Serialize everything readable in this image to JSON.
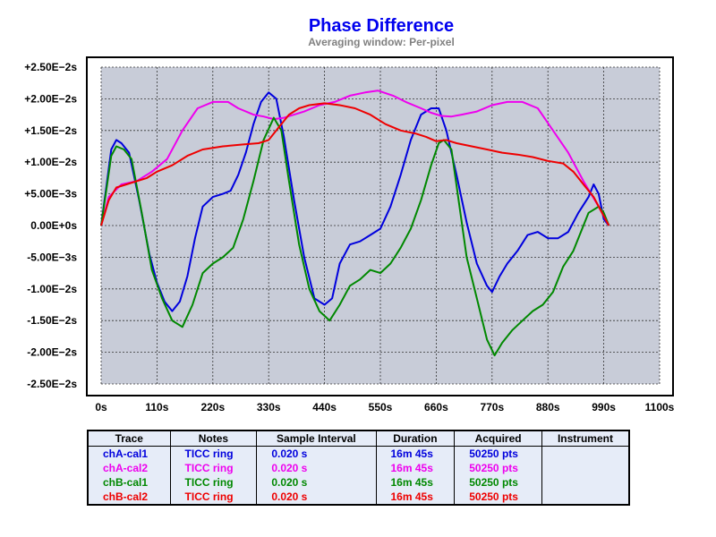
{
  "chart_data": {
    "type": "line",
    "title": "Phase Difference",
    "subtitle": "Averaging window: Per-pixel",
    "xlim": [
      0,
      1100
    ],
    "ylim": [
      -0.025,
      0.025
    ],
    "grid": true,
    "x_ticks": [
      0,
      110,
      220,
      330,
      440,
      550,
      660,
      770,
      880,
      990,
      1100
    ],
    "x_tick_labels": [
      "0s",
      "110s",
      "220s",
      "330s",
      "440s",
      "550s",
      "660s",
      "770s",
      "880s",
      "990s",
      "1100s"
    ],
    "y_ticks": [
      0.025,
      0.02,
      0.015,
      0.01,
      0.005,
      0,
      -0.005,
      -0.01,
      -0.015,
      -0.02,
      -0.025
    ],
    "y_tick_labels": [
      "+2.50E−2s",
      "+2.00E−2s",
      "+1.50E−2s",
      "+1.00E−2s",
      "+5.00E−3s",
      "0.00E+0s",
      "-5.00E−3s",
      "-1.00E−2s",
      "-1.50E−2s",
      "-2.00E−2s",
      "-2.50E−2s"
    ],
    "zero_label_color": "#0000ee",
    "plot_bg": "#c8ccd8",
    "series": [
      {
        "name": "chA-cal1",
        "color": "#0000dd",
        "points": [
          [
            0,
            0
          ],
          [
            10,
            0.006
          ],
          [
            20,
            0.012
          ],
          [
            30,
            0.0135
          ],
          [
            40,
            0.013
          ],
          [
            55,
            0.0115
          ],
          [
            75,
            0.004
          ],
          [
            95,
            -0.0045
          ],
          [
            110,
            -0.009
          ],
          [
            125,
            -0.012
          ],
          [
            140,
            -0.0135
          ],
          [
            155,
            -0.012
          ],
          [
            170,
            -0.008
          ],
          [
            185,
            -0.002
          ],
          [
            200,
            0.003
          ],
          [
            220,
            0.0045
          ],
          [
            240,
            0.005
          ],
          [
            255,
            0.0055
          ],
          [
            270,
            0.008
          ],
          [
            285,
            0.0115
          ],
          [
            300,
            0.016
          ],
          [
            315,
            0.0195
          ],
          [
            330,
            0.021
          ],
          [
            345,
            0.02
          ],
          [
            360,
            0.014
          ],
          [
            380,
            0.004
          ],
          [
            400,
            -0.005
          ],
          [
            420,
            -0.0115
          ],
          [
            440,
            -0.0125
          ],
          [
            455,
            -0.0115
          ],
          [
            470,
            -0.006
          ],
          [
            490,
            -0.003
          ],
          [
            510,
            -0.0025
          ],
          [
            530,
            -0.0015
          ],
          [
            550,
            -0.0005
          ],
          [
            570,
            0.003
          ],
          [
            590,
            0.008
          ],
          [
            610,
            0.0135
          ],
          [
            630,
            0.0175
          ],
          [
            650,
            0.0185
          ],
          [
            665,
            0.0185
          ],
          [
            680,
            0.015
          ],
          [
            700,
            0.008
          ],
          [
            720,
            0.0005
          ],
          [
            740,
            -0.006
          ],
          [
            760,
            -0.0095
          ],
          [
            770,
            -0.0105
          ],
          [
            785,
            -0.008
          ],
          [
            800,
            -0.006
          ],
          [
            820,
            -0.004
          ],
          [
            840,
            -0.0015
          ],
          [
            860,
            -0.001
          ],
          [
            880,
            -0.002
          ],
          [
            900,
            -0.002
          ],
          [
            920,
            -0.001
          ],
          [
            940,
            0.002
          ],
          [
            960,
            0.0045
          ],
          [
            970,
            0.0065
          ],
          [
            980,
            0.005
          ],
          [
            990,
            0.001
          ],
          [
            1000,
            0
          ]
        ]
      },
      {
        "name": "chA-cal2",
        "color": "#ee00ee",
        "points": [
          [
            0,
            0
          ],
          [
            15,
            0.0045
          ],
          [
            40,
            0.0065
          ],
          [
            70,
            0.007
          ],
          [
            100,
            0.0085
          ],
          [
            130,
            0.0105
          ],
          [
            160,
            0.015
          ],
          [
            190,
            0.0185
          ],
          [
            220,
            0.0195
          ],
          [
            250,
            0.0195
          ],
          [
            270,
            0.0185
          ],
          [
            300,
            0.0175
          ],
          [
            320,
            0.0172
          ],
          [
            340,
            0.0168
          ],
          [
            360,
            0.017
          ],
          [
            380,
            0.0175
          ],
          [
            400,
            0.018
          ],
          [
            430,
            0.019
          ],
          [
            460,
            0.0195
          ],
          [
            490,
            0.0205
          ],
          [
            520,
            0.021
          ],
          [
            545,
            0.0213
          ],
          [
            575,
            0.0205
          ],
          [
            600,
            0.0195
          ],
          [
            630,
            0.0185
          ],
          [
            650,
            0.0178
          ],
          [
            670,
            0.0173
          ],
          [
            690,
            0.0172
          ],
          [
            710,
            0.0175
          ],
          [
            740,
            0.018
          ],
          [
            770,
            0.019
          ],
          [
            800,
            0.0195
          ],
          [
            830,
            0.0195
          ],
          [
            860,
            0.0185
          ],
          [
            890,
            0.015
          ],
          [
            920,
            0.0115
          ],
          [
            950,
            0.007
          ],
          [
            980,
            0.003
          ],
          [
            1000,
            0
          ]
        ]
      },
      {
        "name": "chB-cal1",
        "color": "#008800",
        "points": [
          [
            0,
            0
          ],
          [
            10,
            0.0055
          ],
          [
            20,
            0.011
          ],
          [
            30,
            0.0125
          ],
          [
            45,
            0.012
          ],
          [
            60,
            0.0105
          ],
          [
            80,
            0.002
          ],
          [
            100,
            -0.007
          ],
          [
            120,
            -0.0115
          ],
          [
            140,
            -0.015
          ],
          [
            160,
            -0.016
          ],
          [
            180,
            -0.0125
          ],
          [
            200,
            -0.0075
          ],
          [
            220,
            -0.006
          ],
          [
            240,
            -0.005
          ],
          [
            260,
            -0.0035
          ],
          [
            280,
            0.001
          ],
          [
            300,
            0.007
          ],
          [
            320,
            0.0135
          ],
          [
            340,
            0.017
          ],
          [
            355,
            0.015
          ],
          [
            370,
            0.007
          ],
          [
            390,
            -0.003
          ],
          [
            410,
            -0.01
          ],
          [
            430,
            -0.0135
          ],
          [
            450,
            -0.015
          ],
          [
            470,
            -0.0125
          ],
          [
            490,
            -0.0095
          ],
          [
            510,
            -0.0085
          ],
          [
            530,
            -0.007
          ],
          [
            550,
            -0.0075
          ],
          [
            570,
            -0.006
          ],
          [
            590,
            -0.0035
          ],
          [
            610,
            -0.0005
          ],
          [
            630,
            0.004
          ],
          [
            650,
            0.0095
          ],
          [
            665,
            0.013
          ],
          [
            675,
            0.0135
          ],
          [
            690,
            0.012
          ],
          [
            705,
            0.0035
          ],
          [
            720,
            -0.005
          ],
          [
            740,
            -0.0115
          ],
          [
            760,
            -0.018
          ],
          [
            775,
            -0.0205
          ],
          [
            790,
            -0.0185
          ],
          [
            810,
            -0.0165
          ],
          [
            830,
            -0.015
          ],
          [
            850,
            -0.0135
          ],
          [
            870,
            -0.0125
          ],
          [
            890,
            -0.0105
          ],
          [
            910,
            -0.0065
          ],
          [
            930,
            -0.004
          ],
          [
            950,
            0
          ],
          [
            960,
            0.002
          ],
          [
            970,
            0.0025
          ],
          [
            980,
            0.003
          ],
          [
            990,
            0.002
          ],
          [
            1000,
            0
          ]
        ]
      },
      {
        "name": "chB-cal2",
        "color": "#ee0000",
        "points": [
          [
            0,
            0
          ],
          [
            15,
            0.004
          ],
          [
            30,
            0.006
          ],
          [
            50,
            0.0065
          ],
          [
            70,
            0.007
          ],
          [
            90,
            0.0075
          ],
          [
            110,
            0.0085
          ],
          [
            140,
            0.0095
          ],
          [
            170,
            0.011
          ],
          [
            200,
            0.012
          ],
          [
            240,
            0.0125
          ],
          [
            280,
            0.0128
          ],
          [
            310,
            0.013
          ],
          [
            330,
            0.0135
          ],
          [
            350,
            0.0155
          ],
          [
            370,
            0.0175
          ],
          [
            390,
            0.0185
          ],
          [
            410,
            0.019
          ],
          [
            440,
            0.0193
          ],
          [
            470,
            0.019
          ],
          [
            500,
            0.0185
          ],
          [
            530,
            0.0175
          ],
          [
            560,
            0.016
          ],
          [
            590,
            0.015
          ],
          [
            620,
            0.0145
          ],
          [
            640,
            0.014
          ],
          [
            660,
            0.0133
          ],
          [
            680,
            0.0135
          ],
          [
            700,
            0.013
          ],
          [
            730,
            0.0125
          ],
          [
            760,
            0.012
          ],
          [
            790,
            0.0115
          ],
          [
            820,
            0.0112
          ],
          [
            850,
            0.0108
          ],
          [
            880,
            0.0102
          ],
          [
            910,
            0.0098
          ],
          [
            930,
            0.0085
          ],
          [
            950,
            0.0065
          ],
          [
            970,
            0.0045
          ],
          [
            990,
            0.0015
          ],
          [
            1000,
            0
          ]
        ]
      }
    ]
  },
  "legend_table": {
    "headers": [
      "Trace",
      "Notes",
      "Sample Interval",
      "Duration",
      "Acquired",
      "Instrument"
    ],
    "rows": [
      {
        "trace": "chA-cal1",
        "notes": "TICC ring",
        "interval": "0.020 s",
        "duration": "16m 45s",
        "acquired": "50250 pts",
        "instrument": "",
        "color": "#0000dd"
      },
      {
        "trace": "chA-cal2",
        "notes": "TICC ring",
        "interval": "0.020 s",
        "duration": "16m 45s",
        "acquired": "50250 pts",
        "instrument": "",
        "color": "#ee00ee"
      },
      {
        "trace": "chB-cal1",
        "notes": "TICC ring",
        "interval": "0.020 s",
        "duration": "16m 45s",
        "acquired": "50250 pts",
        "instrument": "",
        "color": "#008800"
      },
      {
        "trace": "chB-cal2",
        "notes": "TICC ring",
        "interval": "0.020 s",
        "duration": "16m 45s",
        "acquired": "50250 pts",
        "instrument": "",
        "color": "#ee0000"
      }
    ]
  }
}
